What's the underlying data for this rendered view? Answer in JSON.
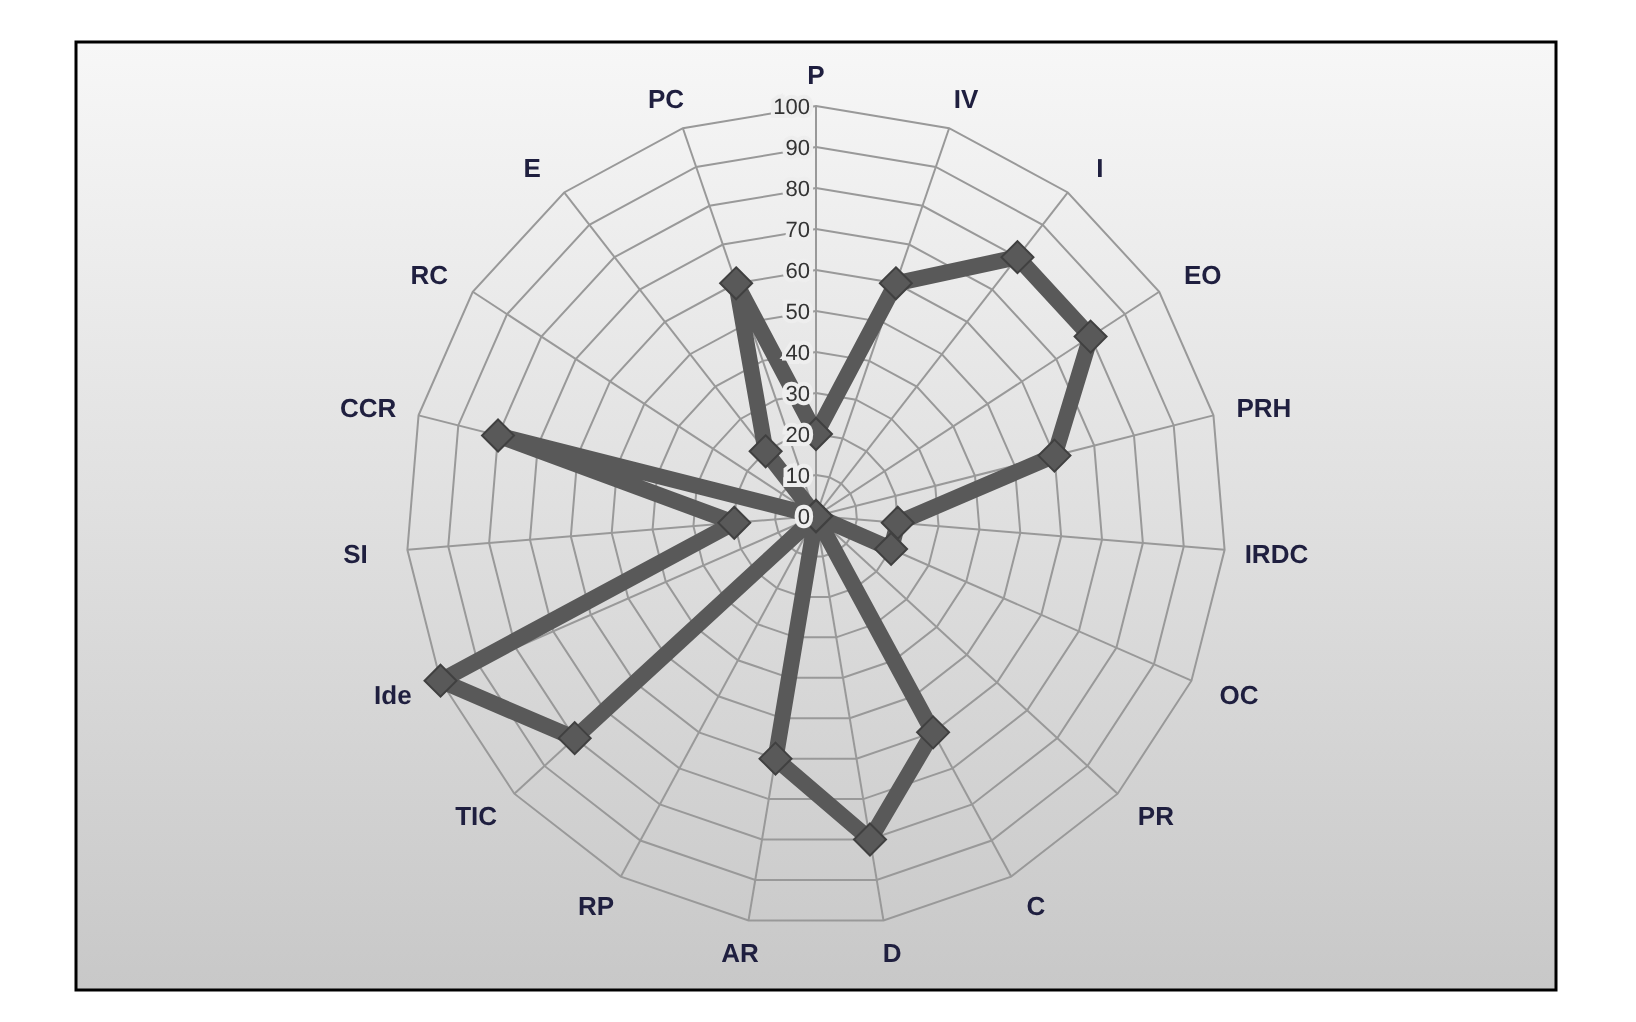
{
  "chart_data": {
    "type": "radar",
    "categories": [
      "P",
      "IV",
      "I",
      "EO",
      "PRH",
      "IRDC",
      "OC",
      "PR",
      "C",
      "D",
      "AR",
      "RP",
      "TIC",
      "Ide",
      "SI",
      "CCR",
      "RC",
      "E",
      "PC"
    ],
    "series": [
      {
        "color": "#595959",
        "values": [
          20,
          60,
          80,
          80,
          60,
          20,
          20,
          0,
          60,
          80,
          60,
          0,
          80,
          100,
          20,
          80,
          0,
          20,
          60
        ]
      }
    ],
    "ylim": [
      0,
      100
    ],
    "yticks": [
      0,
      10,
      20,
      30,
      40,
      50,
      60,
      70,
      80,
      90,
      100
    ],
    "grid": true,
    "marker": "diamond"
  }
}
